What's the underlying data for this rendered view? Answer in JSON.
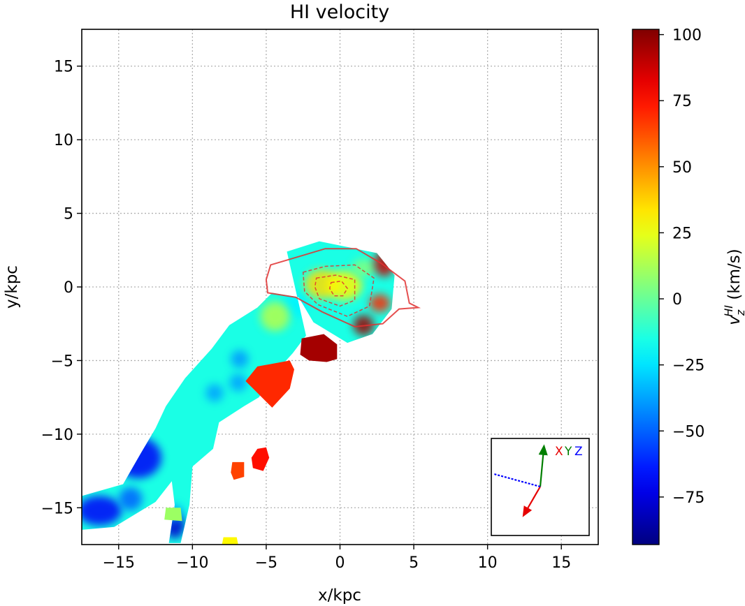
{
  "chart_data": {
    "type": "heatmap",
    "title": "HI velocity",
    "xlabel": "x/kpc",
    "ylabel": "y/kpc",
    "xlim": [
      -17.5,
      17.5
    ],
    "ylim": [
      -17.5,
      17.5
    ],
    "xticks": [
      -15,
      -10,
      -5,
      0,
      5,
      10,
      15
    ],
    "yticks": [
      -15,
      -10,
      -5,
      0,
      5,
      10,
      15
    ],
    "xtick_labels": [
      "−15",
      "−10",
      "−5",
      "0",
      "5",
      "10",
      "15"
    ],
    "ytick_labels": [
      "−15",
      "−10",
      "−5",
      "0",
      "5",
      "10",
      "15"
    ],
    "grid": true,
    "colormap": "jet",
    "colorbar": {
      "label_main": "v",
      "label_sub": "z",
      "label_sup": "HI",
      "label_unit": " (km/s)",
      "range": [
        -93,
        102
      ],
      "ticks": [
        100,
        75,
        50,
        25,
        0,
        -25,
        -50,
        -75
      ],
      "tick_labels": [
        "100",
        "75",
        "50",
        "25",
        "0",
        "−25",
        "−50",
        "−75"
      ]
    },
    "regions": [
      {
        "kind": "gas",
        "points": [
          [
            -3.6,
            2.4
          ],
          [
            -1.4,
            3.1
          ],
          [
            2.5,
            2.3
          ],
          [
            3.7,
            0.8
          ],
          [
            3.5,
            -1.5
          ],
          [
            2.2,
            -3.2
          ],
          [
            0.5,
            -3.8
          ],
          [
            -1.8,
            -2.4
          ],
          [
            -2.8,
            -0.7
          ],
          [
            -4.6,
            -0.4
          ],
          [
            -5.6,
            -1.4
          ],
          [
            -7.5,
            -2.6
          ],
          [
            -8.7,
            -4.2
          ],
          [
            -10.5,
            -6.2
          ],
          [
            -11.8,
            -8.1
          ],
          [
            -12.5,
            -9.6
          ],
          [
            -13.5,
            -11.3
          ],
          [
            -14.7,
            -13.4
          ],
          [
            -17.5,
            -14.2
          ],
          [
            -17.5,
            -16.5
          ],
          [
            -15.3,
            -16.3
          ],
          [
            -12.5,
            -14.6
          ],
          [
            -11.4,
            -13.2
          ],
          [
            -11.2,
            -14.8
          ],
          [
            -11.6,
            -17.4
          ],
          [
            -10.8,
            -17.4
          ],
          [
            -10.2,
            -14.8
          ],
          [
            -10.0,
            -12.2
          ],
          [
            -8.6,
            -11.0
          ],
          [
            -8.2,
            -9.2
          ],
          [
            -6.5,
            -8.1
          ],
          [
            -5.5,
            -7.5
          ],
          [
            -4.2,
            -5.6
          ],
          [
            -3.2,
            -4.5
          ],
          [
            -2.3,
            -3.3
          ]
        ],
        "value": -15
      },
      {
        "kind": "blob",
        "cx": -13.7,
        "cy": -11.6,
        "rx": 1.6,
        "ry": 1.4,
        "value": -70
      },
      {
        "kind": "blob",
        "cx": -16.3,
        "cy": -15.2,
        "rx": 1.5,
        "ry": 1.0,
        "value": -70
      },
      {
        "kind": "blob",
        "cx": -14.2,
        "cy": -14.4,
        "rx": 0.8,
        "ry": 0.8,
        "value": -50
      },
      {
        "kind": "blob",
        "cx": -11.2,
        "cy": -16.2,
        "rx": 0.7,
        "ry": 0.9,
        "value": -78
      },
      {
        "kind": "blob",
        "cx": -11.5,
        "cy": -15.3,
        "rx": 0.9,
        "ry": 0.6,
        "value": -35
      },
      {
        "kind": "blob",
        "cx": -6.8,
        "cy": -4.9,
        "rx": 0.6,
        "ry": 0.6,
        "value": -40
      },
      {
        "kind": "blob",
        "cx": -6.9,
        "cy": -6.5,
        "rx": 0.6,
        "ry": 0.6,
        "value": -38
      },
      {
        "kind": "blob",
        "cx": -8.5,
        "cy": -7.2,
        "rx": 0.6,
        "ry": 0.6,
        "value": -38
      },
      {
        "kind": "blob",
        "cx": -3.0,
        "cy": -1.2,
        "rx": 0.9,
        "ry": 0.9,
        "value": -22
      },
      {
        "kind": "blob",
        "cx": -1.2,
        "cy": 0.2,
        "rx": 1.2,
        "ry": 1.0,
        "value": 35
      },
      {
        "kind": "blob",
        "cx": 0.3,
        "cy": 0.1,
        "rx": 1.2,
        "ry": 1.0,
        "value": 30
      },
      {
        "kind": "blob",
        "cx": 1.6,
        "cy": 1.3,
        "rx": 0.8,
        "ry": 0.6,
        "value": 5
      },
      {
        "kind": "blob",
        "cx": 3.0,
        "cy": 1.6,
        "rx": 0.7,
        "ry": 0.9,
        "value": 88
      },
      {
        "kind": "blob",
        "cx": 2.7,
        "cy": -1.1,
        "rx": 0.7,
        "ry": 0.6,
        "value": 70
      },
      {
        "kind": "blob",
        "cx": 1.6,
        "cy": -2.6,
        "rx": 0.7,
        "ry": 0.7,
        "value": 97
      },
      {
        "kind": "blob",
        "cx": -4.4,
        "cy": -2.0,
        "rx": 1.0,
        "ry": 1.0,
        "value": 15
      },
      {
        "kind": "clump",
        "points": [
          [
            -2.6,
            -3.5
          ],
          [
            -1.1,
            -3.2
          ],
          [
            -0.2,
            -3.9
          ],
          [
            -0.2,
            -4.9
          ],
          [
            -0.9,
            -5.1
          ],
          [
            -2.1,
            -5.0
          ],
          [
            -2.7,
            -4.6
          ]
        ],
        "value": 95
      },
      {
        "kind": "clump",
        "points": [
          [
            -5.6,
            -5.4
          ],
          [
            -3.4,
            -5.0
          ],
          [
            -3.1,
            -5.6
          ],
          [
            -3.4,
            -6.9
          ],
          [
            -4.6,
            -8.2
          ],
          [
            -5.6,
            -7.2
          ],
          [
            -6.4,
            -6.4
          ]
        ],
        "value": 70
      },
      {
        "kind": "clump",
        "points": [
          [
            -5.6,
            -11.0
          ],
          [
            -5.0,
            -10.9
          ],
          [
            -4.8,
            -11.6
          ],
          [
            -5.2,
            -12.5
          ],
          [
            -5.9,
            -12.3
          ],
          [
            -6.0,
            -11.6
          ]
        ],
        "value": 75
      },
      {
        "kind": "clump",
        "points": [
          [
            -7.3,
            -11.9
          ],
          [
            -6.5,
            -11.9
          ],
          [
            -6.5,
            -12.9
          ],
          [
            -7.2,
            -13.1
          ],
          [
            -7.4,
            -12.6
          ]
        ],
        "value": 65
      },
      {
        "kind": "clump",
        "points": [
          [
            -7.9,
            -17.0
          ],
          [
            -7.0,
            -17.0
          ],
          [
            -6.9,
            -17.5
          ],
          [
            -8.0,
            -17.5
          ]
        ],
        "value": 30
      },
      {
        "kind": "clump",
        "points": [
          [
            -11.8,
            -15.0
          ],
          [
            -10.8,
            -15.0
          ],
          [
            -10.7,
            -15.9
          ],
          [
            -11.9,
            -15.8
          ]
        ],
        "value": 10
      }
    ],
    "contours": [
      {
        "style": "solid",
        "points": [
          [
            -4.7,
            1.5
          ],
          [
            -3.0,
            2.0
          ],
          [
            -1.0,
            2.6
          ],
          [
            1.1,
            2.6
          ],
          [
            2.8,
            1.6
          ],
          [
            4.4,
            0.4
          ],
          [
            4.7,
            -1.1
          ],
          [
            5.3,
            -1.4
          ],
          [
            4.0,
            -1.5
          ],
          [
            2.9,
            -2.5
          ],
          [
            1.0,
            -2.7
          ],
          [
            -1.2,
            -1.7
          ],
          [
            -3.0,
            -0.7
          ],
          [
            -4.9,
            -0.4
          ],
          [
            -5.0,
            0.5
          ]
        ]
      },
      {
        "style": "dashed",
        "points": [
          [
            -2.5,
            1.0
          ],
          [
            -1.0,
            1.4
          ],
          [
            1.0,
            1.5
          ],
          [
            2.3,
            0.6
          ],
          [
            2.0,
            -1.3
          ],
          [
            0.5,
            -2.0
          ],
          [
            -1.5,
            -1.2
          ],
          [
            -2.4,
            -0.3
          ]
        ]
      },
      {
        "style": "dashed",
        "points": [
          [
            -1.6,
            0.6
          ],
          [
            -0.3,
            0.8
          ],
          [
            1.0,
            0.5
          ],
          [
            1.0,
            -0.9
          ],
          [
            0.0,
            -1.3
          ],
          [
            -1.4,
            -0.8
          ],
          [
            -1.7,
            0.0
          ]
        ]
      },
      {
        "style": "dashed",
        "points": [
          [
            -0.6,
            0.3
          ],
          [
            0.1,
            0.4
          ],
          [
            0.5,
            -0.1
          ],
          [
            0.2,
            -0.6
          ],
          [
            -0.4,
            -0.6
          ],
          [
            -0.7,
            -0.1
          ]
        ]
      }
    ],
    "inset_axes": {
      "labels": [
        "X",
        "Y",
        "Z"
      ],
      "colors": [
        "#e60000",
        "#007f00",
        "#0000ff"
      ]
    }
  }
}
